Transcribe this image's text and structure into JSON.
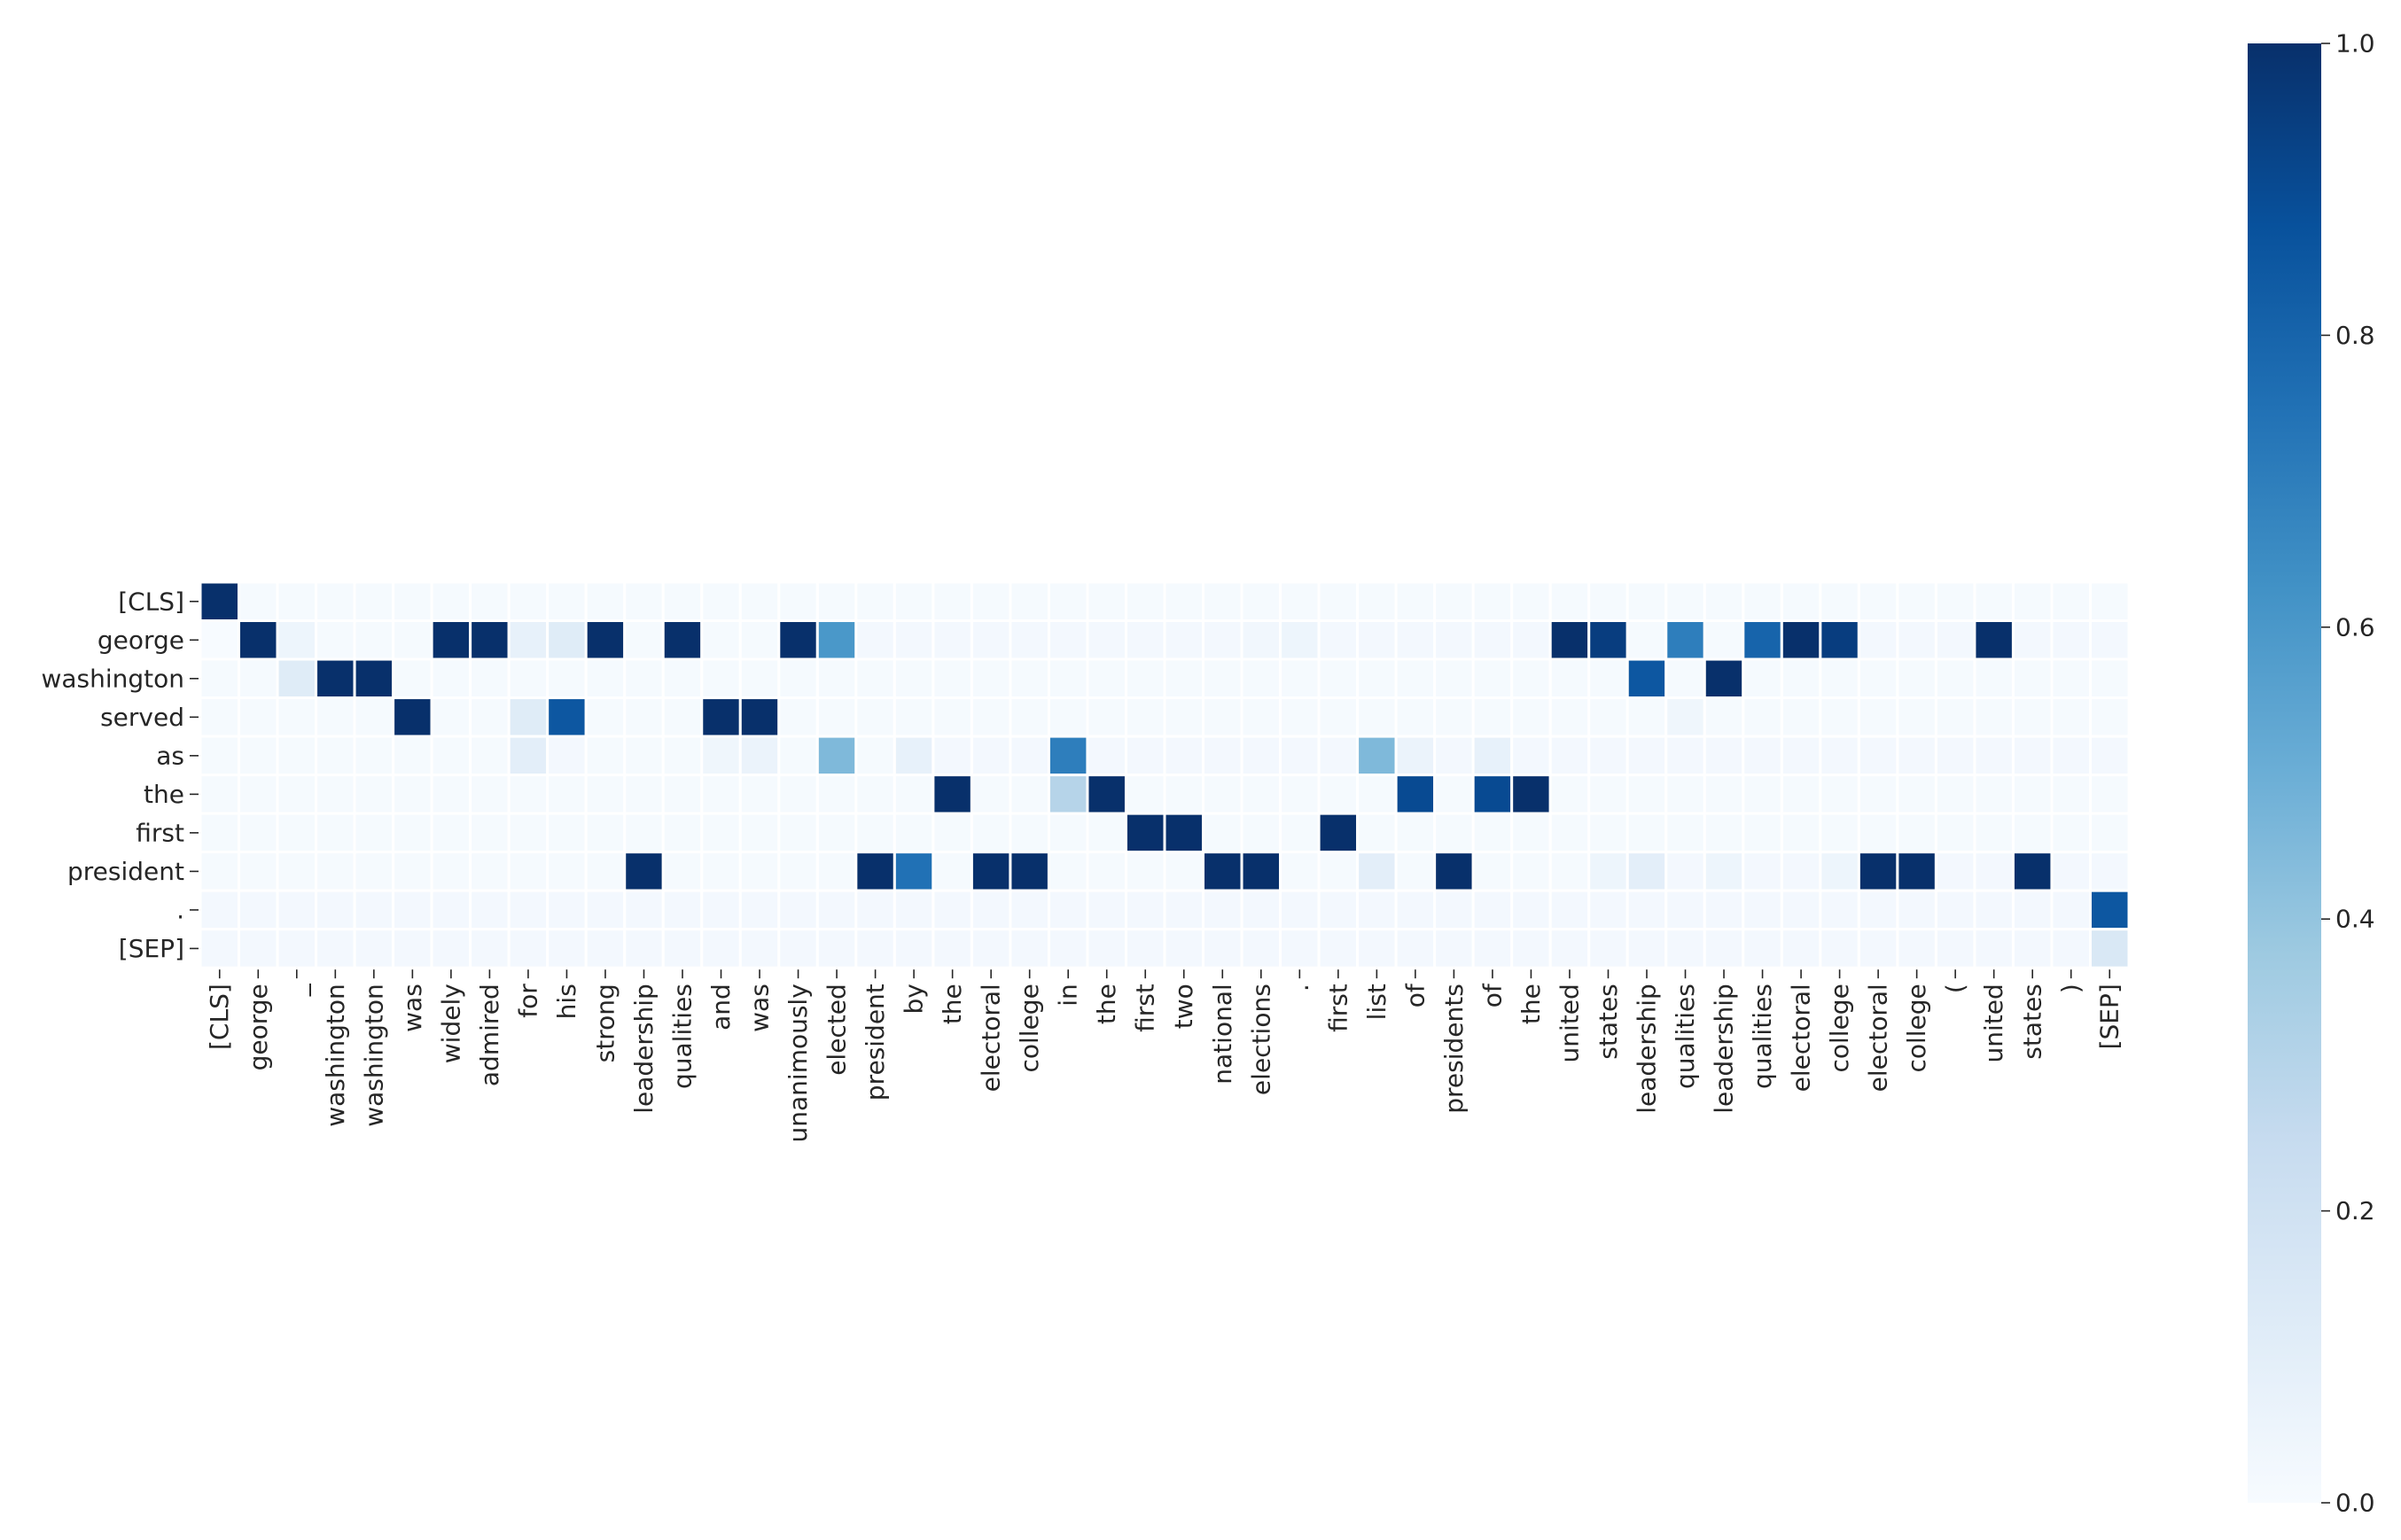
{
  "chart_data": {
    "type": "heatmap",
    "title": "",
    "xlabel": "",
    "ylabel": "",
    "x_labels": [
      "[CLS]",
      "george",
      "_",
      "washington",
      "washington",
      "was",
      "widely",
      "admired",
      "for",
      "his",
      "strong",
      "leadership",
      "qualities",
      "and",
      "was",
      "unanimously",
      "elected",
      "president",
      "by",
      "the",
      "electoral",
      "college",
      "in",
      "the",
      "first",
      "two",
      "national",
      "elections",
      ".",
      "first",
      "list",
      "of",
      "presidents",
      "of",
      "the",
      "united",
      "states",
      "leadership",
      "qualities",
      "leadership",
      "qualities",
      "electoral",
      "college",
      "electoral",
      "college",
      "(",
      "united",
      "states",
      ")",
      "[SEP]"
    ],
    "y_labels": [
      "[CLS]",
      "george",
      "washington",
      "served",
      "as",
      "the",
      "first",
      "president",
      ".",
      "[SEP]"
    ],
    "values": [
      [
        1.0,
        0.01,
        0.01,
        0.01,
        0.01,
        0.01,
        0.01,
        0.01,
        0.01,
        0.01,
        0.01,
        0.01,
        0.01,
        0.01,
        0.01,
        0.01,
        0.01,
        0.01,
        0.01,
        0.01,
        0.01,
        0.01,
        0.01,
        0.01,
        0.01,
        0.01,
        0.01,
        0.01,
        0.01,
        0.01,
        0.01,
        0.01,
        0.01,
        0.01,
        0.01,
        0.01,
        0.01,
        0.01,
        0.01,
        0.01,
        0.01,
        0.01,
        0.01,
        0.01,
        0.01,
        0.01,
        0.01,
        0.01,
        0.01,
        0.01
      ],
      [
        0.0,
        1.0,
        0.05,
        0.01,
        0.01,
        0.01,
        1.0,
        1.0,
        0.08,
        0.12,
        1.0,
        0.01,
        1.0,
        0.01,
        0.01,
        1.0,
        0.6,
        0.02,
        0.02,
        0.02,
        0.02,
        0.02,
        0.02,
        0.02,
        0.02,
        0.02,
        0.02,
        0.03,
        0.05,
        0.02,
        0.02,
        0.02,
        0.02,
        0.02,
        0.02,
        1.0,
        0.95,
        0.01,
        0.7,
        0.01,
        0.8,
        1.0,
        0.95,
        0.02,
        0.02,
        0.02,
        1.0,
        0.02,
        0.02,
        0.02
      ],
      [
        0.01,
        0.01,
        0.12,
        1.0,
        1.0,
        0.01,
        0.01,
        0.01,
        0.01,
        0.01,
        0.01,
        0.01,
        0.01,
        0.01,
        0.01,
        0.01,
        0.01,
        0.01,
        0.01,
        0.01,
        0.01,
        0.01,
        0.01,
        0.01,
        0.01,
        0.01,
        0.01,
        0.01,
        0.01,
        0.01,
        0.01,
        0.01,
        0.01,
        0.01,
        0.01,
        0.01,
        0.01,
        0.85,
        0.01,
        1.0,
        0.01,
        0.01,
        0.01,
        0.01,
        0.01,
        0.01,
        0.01,
        0.01,
        0.01,
        0.01
      ],
      [
        0.01,
        0.01,
        0.01,
        0.01,
        0.01,
        1.0,
        0.01,
        0.01,
        0.12,
        0.85,
        0.01,
        0.01,
        0.01,
        1.0,
        1.0,
        0.01,
        0.01,
        0.01,
        0.01,
        0.01,
        0.01,
        0.01,
        0.01,
        0.01,
        0.01,
        0.01,
        0.01,
        0.01,
        0.01,
        0.01,
        0.01,
        0.01,
        0.01,
        0.01,
        0.01,
        0.01,
        0.01,
        0.01,
        0.04,
        0.01,
        0.01,
        0.01,
        0.01,
        0.01,
        0.01,
        0.01,
        0.01,
        0.01,
        0.01,
        0.01
      ],
      [
        0.01,
        0.01,
        0.01,
        0.01,
        0.01,
        0.01,
        0.01,
        0.01,
        0.1,
        0.02,
        0.01,
        0.01,
        0.01,
        0.04,
        0.06,
        0.01,
        0.45,
        0.01,
        0.08,
        0.02,
        0.02,
        0.02,
        0.7,
        0.02,
        0.02,
        0.02,
        0.02,
        0.02,
        0.02,
        0.02,
        0.45,
        0.06,
        0.02,
        0.08,
        0.02,
        0.02,
        0.02,
        0.02,
        0.02,
        0.02,
        0.02,
        0.02,
        0.02,
        0.02,
        0.02,
        0.02,
        0.02,
        0.02,
        0.02,
        0.02
      ],
      [
        0.01,
        0.01,
        0.01,
        0.01,
        0.01,
        0.01,
        0.01,
        0.01,
        0.01,
        0.01,
        0.01,
        0.01,
        0.01,
        0.01,
        0.01,
        0.01,
        0.01,
        0.01,
        0.01,
        1.0,
        0.01,
        0.01,
        0.3,
        1.0,
        0.01,
        0.01,
        0.01,
        0.01,
        0.01,
        0.01,
        0.01,
        0.9,
        0.01,
        0.9,
        1.0,
        0.01,
        0.01,
        0.01,
        0.01,
        0.01,
        0.01,
        0.01,
        0.01,
        0.01,
        0.01,
        0.01,
        0.01,
        0.01,
        0.01,
        0.01
      ],
      [
        0.01,
        0.01,
        0.01,
        0.01,
        0.01,
        0.01,
        0.01,
        0.01,
        0.01,
        0.01,
        0.01,
        0.01,
        0.01,
        0.01,
        0.01,
        0.01,
        0.01,
        0.01,
        0.01,
        0.01,
        0.01,
        0.01,
        0.01,
        0.01,
        1.0,
        1.0,
        0.01,
        0.01,
        0.01,
        1.0,
        0.01,
        0.01,
        0.01,
        0.01,
        0.01,
        0.01,
        0.01,
        0.01,
        0.01,
        0.01,
        0.01,
        0.01,
        0.01,
        0.01,
        0.01,
        0.01,
        0.01,
        0.01,
        0.01,
        0.01
      ],
      [
        0.01,
        0.01,
        0.01,
        0.01,
        0.01,
        0.01,
        0.01,
        0.01,
        0.01,
        0.01,
        0.01,
        1.0,
        0.01,
        0.01,
        0.01,
        0.01,
        0.01,
        1.0,
        0.75,
        0.01,
        1.0,
        1.0,
        0.01,
        0.01,
        0.01,
        0.01,
        1.0,
        1.0,
        0.01,
        0.01,
        0.1,
        0.01,
        1.0,
        0.01,
        0.01,
        0.01,
        0.05,
        0.1,
        0.02,
        0.05,
        0.02,
        0.02,
        0.05,
        1.0,
        1.0,
        0.02,
        0.02,
        1.0,
        0.02,
        0.02
      ],
      [
        0.02,
        0.02,
        0.02,
        0.02,
        0.02,
        0.02,
        0.02,
        0.02,
        0.02,
        0.02,
        0.02,
        0.02,
        0.02,
        0.02,
        0.02,
        0.02,
        0.02,
        0.02,
        0.02,
        0.02,
        0.02,
        0.02,
        0.02,
        0.02,
        0.02,
        0.02,
        0.02,
        0.02,
        0.02,
        0.02,
        0.02,
        0.02,
        0.02,
        0.02,
        0.02,
        0.02,
        0.02,
        0.02,
        0.02,
        0.02,
        0.02,
        0.02,
        0.02,
        0.02,
        0.02,
        0.02,
        0.02,
        0.02,
        0.02,
        0.85
      ],
      [
        0.02,
        0.02,
        0.02,
        0.02,
        0.02,
        0.02,
        0.02,
        0.02,
        0.02,
        0.02,
        0.02,
        0.02,
        0.02,
        0.02,
        0.02,
        0.02,
        0.02,
        0.02,
        0.02,
        0.02,
        0.02,
        0.02,
        0.02,
        0.02,
        0.02,
        0.02,
        0.02,
        0.02,
        0.02,
        0.02,
        0.02,
        0.02,
        0.02,
        0.02,
        0.02,
        0.02,
        0.02,
        0.02,
        0.02,
        0.02,
        0.02,
        0.02,
        0.02,
        0.02,
        0.02,
        0.02,
        0.02,
        0.02,
        0.02,
        0.15
      ]
    ],
    "colormap": "Blues",
    "vmin": 0.0,
    "vmax": 1.0,
    "colorbar_ticks": [
      "0.0",
      "0.2",
      "0.4",
      "0.6",
      "0.8",
      "1.0"
    ],
    "colorbar_tick_values": [
      0.0,
      0.2,
      0.4,
      0.6,
      0.8,
      1.0
    ],
    "grid": true,
    "cell_separator_color": "#ffffff",
    "colormap_stops": [
      "#f7fbff",
      "#deebf7",
      "#c6dbef",
      "#9ecae1",
      "#6baed6",
      "#4292c6",
      "#2171b5",
      "#08519c",
      "#08306b"
    ]
  }
}
